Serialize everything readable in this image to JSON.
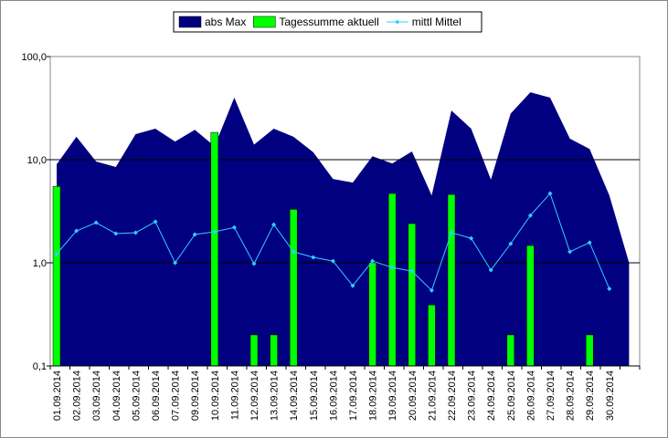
{
  "chart_data": {
    "type": "combo",
    "log_scale": true,
    "grid": true,
    "legend": "top",
    "categories": [
      "01.09.2014",
      "02.09.2014",
      "03.09.2014",
      "04.09.2014",
      "05.09.2014",
      "06.09.2014",
      "07.09.2014",
      "09.09.2014",
      "10.09.2014",
      "11.09.2014",
      "12.09.2014",
      "13.09.2014",
      "14.09.2014",
      "15.09.2014",
      "16.09.2014",
      "17.09.2014",
      "18.09.2014",
      "19.09.2014",
      "20.09.2014",
      "21.09.2014",
      "22.09.2014",
      "23.09.2014",
      "24.09.2014",
      "25.09.2014",
      "26.09.2014",
      "27.09.2014",
      "28.09.2014",
      "29.09.2014",
      "30.09.2014",
      null
    ],
    "ylim": [
      0.1,
      100
    ],
    "yticks": [
      {
        "value": 0.1,
        "label": "0,1"
      },
      {
        "value": 1,
        "label": "1,0"
      },
      {
        "value": 10,
        "label": "10,0"
      },
      {
        "value": 100,
        "label": "100,0"
      }
    ],
    "series": [
      {
        "name": "abs Max",
        "kind": "area",
        "color": "#000080",
        "values": [
          9.0,
          16.7,
          9.6,
          8.5,
          17.7,
          20,
          15,
          19.5,
          13.5,
          40,
          14,
          20,
          16.7,
          11.8,
          6.5,
          6,
          10.8,
          9.2,
          12,
          4.5,
          30,
          20,
          6.4,
          28,
          45,
          40,
          16,
          12.7,
          4.5,
          1.0
        ]
      },
      {
        "name": "Tagessumme aktuell",
        "kind": "bar",
        "color": "#00ff00",
        "values": [
          5.5,
          null,
          null,
          null,
          null,
          null,
          null,
          null,
          18.4,
          null,
          0.2,
          0.2,
          3.3,
          null,
          null,
          null,
          1.0,
          4.7,
          2.4,
          0.39,
          4.6,
          null,
          null,
          0.2,
          1.47,
          null,
          null,
          0.2,
          null,
          null
        ]
      },
      {
        "name": "mittl Mittel",
        "kind": "line",
        "color": "#33ccff",
        "values": [
          1.22,
          2.04,
          2.45,
          1.92,
          1.96,
          2.5,
          1.0,
          1.88,
          2.0,
          2.2,
          0.98,
          2.35,
          1.28,
          1.13,
          1.04,
          0.6,
          1.04,
          0.9,
          0.83,
          0.54,
          1.96,
          1.73,
          0.85,
          1.53,
          2.88,
          4.7,
          1.28,
          1.57,
          0.56,
          null
        ]
      }
    ]
  }
}
